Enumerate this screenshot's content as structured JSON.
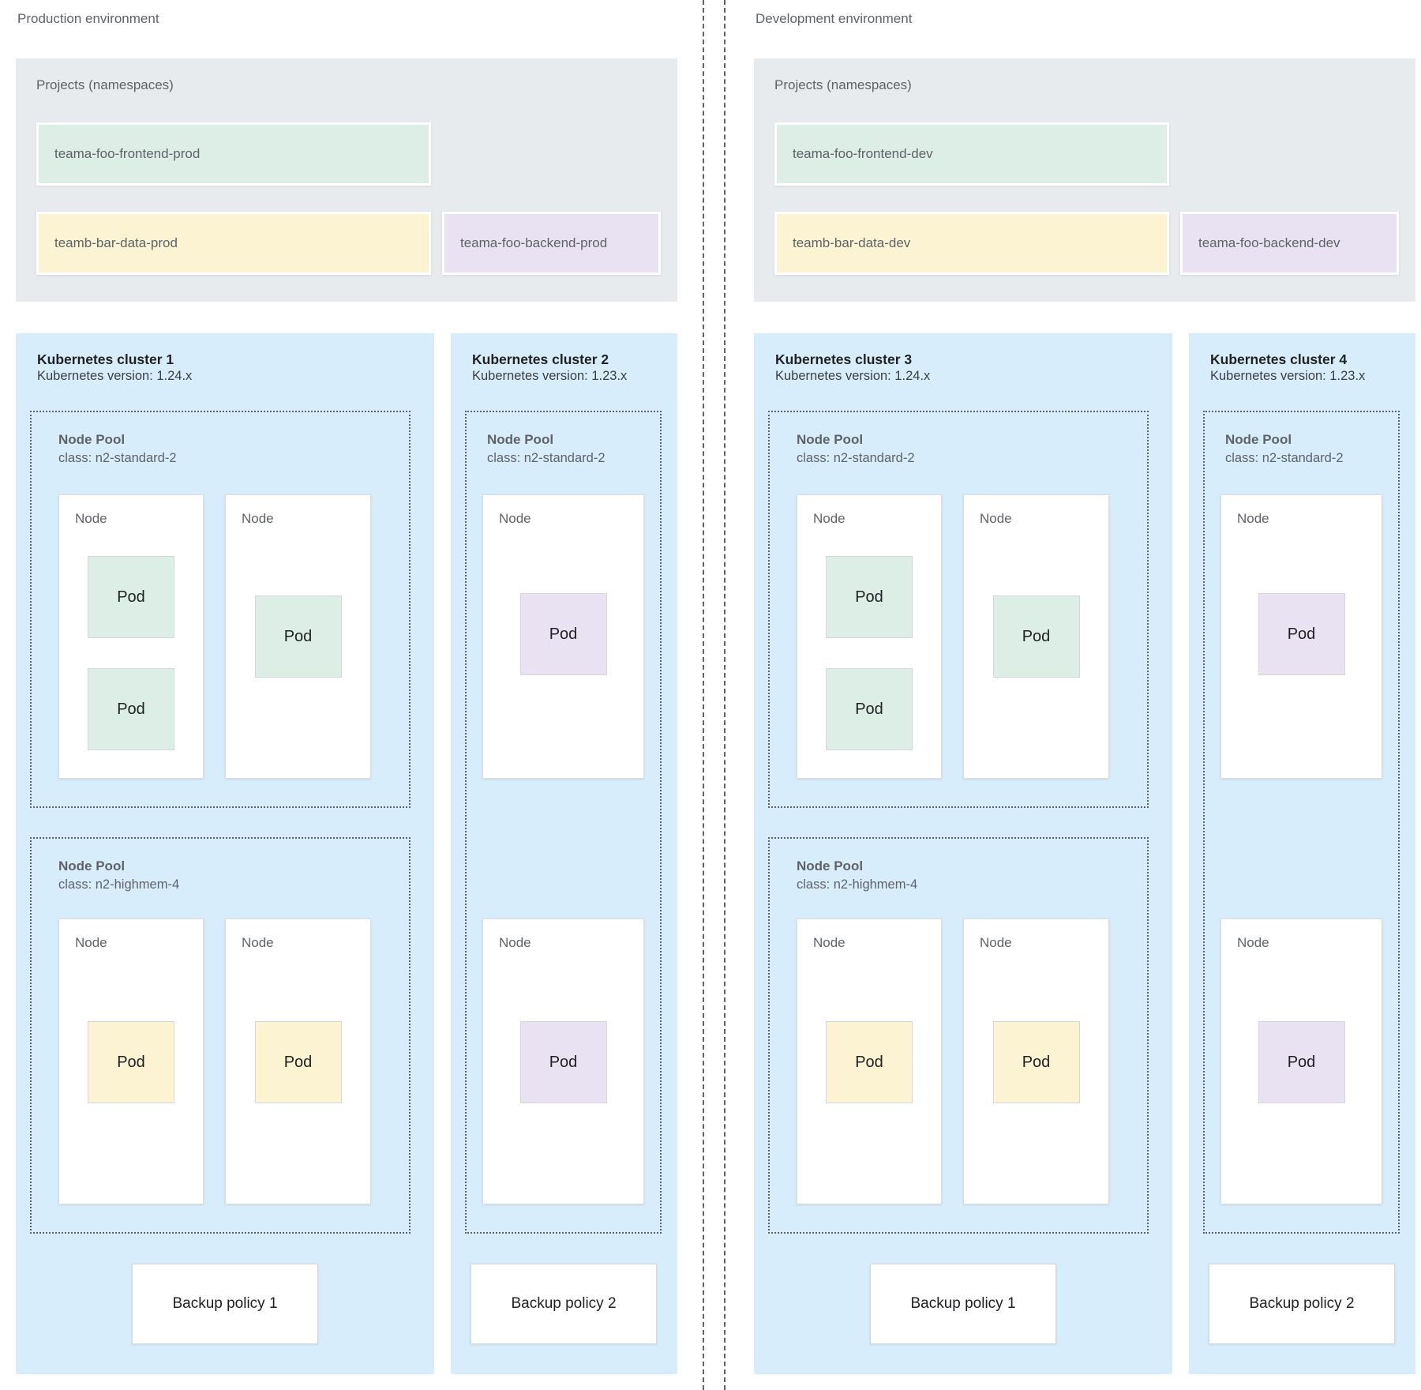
{
  "colors": {
    "cluster_background": "#d8edfb",
    "projects_background": "#e8ebee",
    "namespace_green": "#dceee5",
    "namespace_yellow": "#fbf3d2",
    "namespace_purple": "#e8e2f2",
    "dashed_border": "#5f6368",
    "label_gray": "#5f6368",
    "title_dark": "#202124"
  },
  "environments": [
    {
      "label": "Production environment",
      "projects": {
        "title": "Projects (namespaces)",
        "namespaces": [
          {
            "name": "teama-foo-frontend-prod",
            "color": "green"
          },
          {
            "name": "teamb-bar-data-prod",
            "color": "yellow"
          },
          {
            "name": "teama-foo-backend-prod",
            "color": "purple"
          }
        ]
      },
      "clusters": [
        {
          "title": "Kubernetes cluster 1",
          "version": "Kubernetes version: 1.24.x",
          "backup_policy": "Backup policy 1",
          "pools": [
            {
              "label": "Node Pool",
              "class": "class: n2-standard-2",
              "nodes": [
                {
                  "label": "Node",
                  "pods": [
                    {
                      "label": "Pod",
                      "color": "green"
                    },
                    {
                      "label": "Pod",
                      "color": "green"
                    }
                  ]
                },
                {
                  "label": "Node",
                  "pods": [
                    {
                      "label": "Pod",
                      "color": "green"
                    }
                  ]
                }
              ]
            },
            {
              "label": "Node Pool",
              "class": "class: n2-highmem-4",
              "nodes": [
                {
                  "label": "Node",
                  "pods": [
                    {
                      "label": "Pod",
                      "color": "yellow"
                    }
                  ]
                },
                {
                  "label": "Node",
                  "pods": [
                    {
                      "label": "Pod",
                      "color": "yellow"
                    }
                  ]
                }
              ]
            }
          ]
        },
        {
          "title": "Kubernetes cluster 2",
          "version": "Kubernetes version: 1.23.x",
          "backup_policy": "Backup policy 2",
          "pools": [
            {
              "label": "Node Pool",
              "class": "class: n2-standard-2",
              "nodes": [
                {
                  "label": "Node",
                  "pods": [
                    {
                      "label": "Pod",
                      "color": "purple"
                    }
                  ]
                },
                {
                  "label": "Node",
                  "pods": [
                    {
                      "label": "Pod",
                      "color": "purple"
                    }
                  ]
                }
              ]
            }
          ]
        }
      ]
    },
    {
      "label": "Development environment",
      "projects": {
        "title": "Projects (namespaces)",
        "namespaces": [
          {
            "name": "teama-foo-frontend-dev",
            "color": "green"
          },
          {
            "name": "teamb-bar-data-dev",
            "color": "yellow"
          },
          {
            "name": "teama-foo-backend-dev",
            "color": "purple"
          }
        ]
      },
      "clusters": [
        {
          "title": "Kubernetes cluster 3",
          "version": "Kubernetes version: 1.24.x",
          "backup_policy": "Backup policy 1",
          "pools": [
            {
              "label": "Node Pool",
              "class": "class: n2-standard-2",
              "nodes": [
                {
                  "label": "Node",
                  "pods": [
                    {
                      "label": "Pod",
                      "color": "green"
                    },
                    {
                      "label": "Pod",
                      "color": "green"
                    }
                  ]
                },
                {
                  "label": "Node",
                  "pods": [
                    {
                      "label": "Pod",
                      "color": "green"
                    }
                  ]
                }
              ]
            },
            {
              "label": "Node Pool",
              "class": "class: n2-highmem-4",
              "nodes": [
                {
                  "label": "Node",
                  "pods": [
                    {
                      "label": "Pod",
                      "color": "yellow"
                    }
                  ]
                },
                {
                  "label": "Node",
                  "pods": [
                    {
                      "label": "Pod",
                      "color": "yellow"
                    }
                  ]
                }
              ]
            }
          ]
        },
        {
          "title": "Kubernetes cluster 4",
          "version": "Kubernetes version: 1.23.x",
          "backup_policy": "Backup policy 2",
          "pools": [
            {
              "label": "Node Pool",
              "class": "class: n2-standard-2",
              "nodes": [
                {
                  "label": "Node",
                  "pods": [
                    {
                      "label": "Pod",
                      "color": "purple"
                    }
                  ]
                },
                {
                  "label": "Node",
                  "pods": [
                    {
                      "label": "Pod",
                      "color": "purple"
                    }
                  ]
                }
              ]
            }
          ]
        }
      ]
    }
  ]
}
